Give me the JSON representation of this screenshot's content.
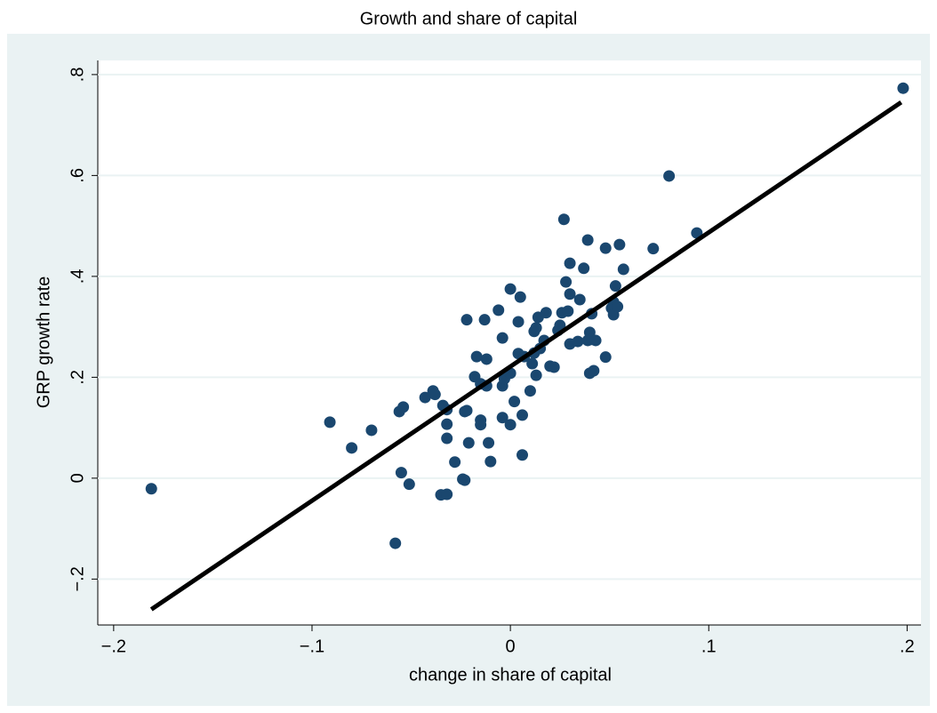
{
  "chart_data": {
    "type": "scatter",
    "title": "Growth and share of capital",
    "x_label": "change in share of capital",
    "y_label": "GRP growth rate",
    "xlim": [
      -0.208,
      0.207
    ],
    "xticks": [
      {
        "value": -0.2,
        "label": "−.2"
      },
      {
        "value": -0.1,
        "label": "−.1"
      },
      0,
      {
        "value": 0.1,
        "label": ".1"
      },
      {
        "value": 0.2,
        "label": ".2"
      }
    ],
    "ylim": [
      -0.291,
      0.828
    ],
    "yticks": [
      {
        "value": -0.2,
        "label": "−.2"
      },
      0,
      {
        "value": 0.2,
        "label": ".2"
      },
      {
        "value": 0.4,
        "label": ".4"
      },
      {
        "value": 0.6,
        "label": ".6"
      },
      {
        "value": 0.8,
        "label": ".8"
      }
    ],
    "grid": true,
    "series": [
      {
        "color": "#1a476f",
        "x": [
          -0.181,
          0.198,
          0.08,
          0.094,
          0.072,
          -0.091,
          -0.08,
          -0.07,
          -0.058,
          -0.055,
          -0.051,
          -0.056,
          -0.054,
          -0.043,
          -0.039,
          -0.038,
          -0.034,
          -0.032,
          -0.032,
          -0.032,
          -0.035,
          -0.032,
          -0.028,
          -0.024,
          -0.023,
          -0.023,
          -0.022,
          -0.021,
          -0.022,
          -0.018,
          -0.017,
          -0.015,
          -0.015,
          -0.015,
          -0.013,
          -0.012,
          -0.012,
          -0.011,
          -0.01,
          -0.006,
          -0.004,
          -0.004,
          -0.003,
          -0.004,
          0.0,
          0.0,
          0.0,
          0.002,
          0.004,
          0.004,
          0.005,
          0.006,
          0.006,
          0.007,
          0.01,
          0.011,
          0.012,
          0.013,
          0.012,
          0.013,
          0.014,
          0.015,
          0.017,
          0.018,
          0.02,
          0.022,
          0.024,
          0.025,
          0.026,
          0.027,
          0.028,
          0.029,
          0.03,
          0.03,
          0.03,
          0.034,
          0.035,
          0.037,
          0.039,
          0.039,
          0.04,
          0.041,
          0.041,
          0.04,
          0.042,
          0.043,
          0.048,
          0.048,
          0.051,
          0.052,
          0.052,
          0.053,
          0.054,
          0.055,
          0.057
        ],
        "values": [
          -0.021,
          0.773,
          0.599,
          0.486,
          0.455,
          0.111,
          0.06,
          0.095,
          -0.129,
          0.011,
          -0.012,
          0.132,
          0.141,
          0.16,
          0.173,
          0.166,
          0.144,
          0.136,
          0.107,
          0.079,
          -0.033,
          -0.032,
          0.032,
          -0.002,
          -0.004,
          0.132,
          0.134,
          0.07,
          0.314,
          0.201,
          0.241,
          0.187,
          0.115,
          0.106,
          0.314,
          0.236,
          0.183,
          0.07,
          0.033,
          0.333,
          0.278,
          0.183,
          0.197,
          0.12,
          0.106,
          0.375,
          0.208,
          0.152,
          0.247,
          0.31,
          0.359,
          0.046,
          0.125,
          0.241,
          0.173,
          0.227,
          0.291,
          0.298,
          0.248,
          0.204,
          0.319,
          0.257,
          0.273,
          0.328,
          0.222,
          0.22,
          0.293,
          0.303,
          0.328,
          0.513,
          0.389,
          0.331,
          0.365,
          0.426,
          0.266,
          0.271,
          0.354,
          0.416,
          0.273,
          0.472,
          0.289,
          0.326,
          0.275,
          0.208,
          0.213,
          0.273,
          0.456,
          0.24,
          0.337,
          0.324,
          0.349,
          0.381,
          0.34,
          0.463,
          0.414
        ]
      }
    ],
    "fit": {
      "x": [
        -0.181,
        0.197
      ],
      "values": [
        -0.26,
        0.745
      ],
      "color": "#000000"
    }
  }
}
